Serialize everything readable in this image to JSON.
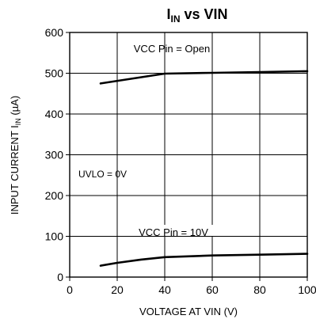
{
  "chart_data": {
    "type": "line",
    "title": {
      "prefix": "I",
      "sub": "IN",
      "suffix": " vs VIN"
    },
    "xlabel": "VOLTAGE AT VIN (V)",
    "ylabel": {
      "prefix": "INPUT CURRENT I",
      "sub": "IN",
      "suffix": " (µA)"
    },
    "xlim": [
      0,
      100
    ],
    "ylim": [
      0,
      600
    ],
    "x_ticks": [
      0,
      20,
      40,
      60,
      80,
      100
    ],
    "y_ticks": [
      0,
      100,
      200,
      300,
      400,
      500,
      600
    ],
    "grid": true,
    "series": [
      {
        "name": "VCC Pin = Open",
        "x": [
          13,
          40,
          60,
          80,
          100
        ],
        "y": [
          475,
          499,
          501,
          503,
          505
        ]
      },
      {
        "name": "VCC Pin = 10V",
        "x": [
          13,
          20,
          30,
          40,
          60,
          80,
          100
        ],
        "y": [
          28,
          35,
          43,
          49,
          53,
          55,
          57
        ]
      }
    ],
    "annotations": [
      {
        "text": "UVLO = 0V",
        "x": 5,
        "y": 250
      }
    ]
  }
}
